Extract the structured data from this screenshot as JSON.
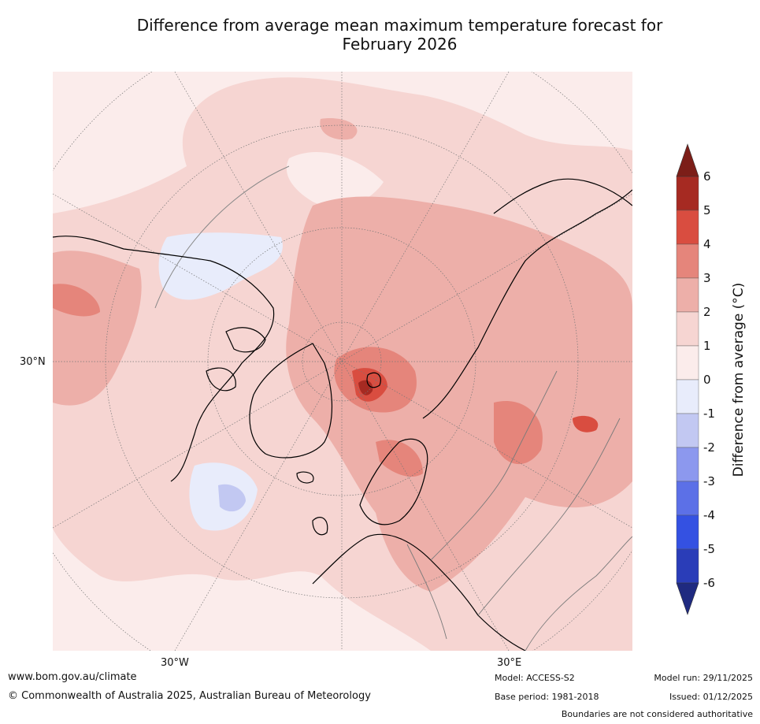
{
  "title_line1": "Difference from average mean maximum temperature forecast for",
  "title_line2": "February 2026",
  "map": {
    "lat_label": "30°N",
    "lon_labels": [
      "30°W",
      "30°E"
    ]
  },
  "colorbar": {
    "title": "Difference from average (°C)",
    "ticks": [
      "6",
      "5",
      "4",
      "3",
      "2",
      "1",
      "0",
      "-1",
      "-2",
      "-3",
      "-4",
      "-5",
      "-6"
    ],
    "colors": [
      "#a62a22",
      "#d94d40",
      "#e5857b",
      "#edafa9",
      "#f6d5d2",
      "#fbeceb",
      "#e8ecfb",
      "#c2c8f2",
      "#8c98ee",
      "#5c70e7",
      "#3451e2",
      "#2a3db8"
    ],
    "over_color": "#7c1e18",
    "under_color": "#1f2a80"
  },
  "footer": {
    "website": "www.bom.gov.au/climate",
    "copyright": "© Commonwealth of Australia 2025, Australian Bureau of Meteorology",
    "model": "Model: ACCESS-S2",
    "base_period": "Base period: 1981-2018",
    "model_run": "Model run: 29/11/2025",
    "issued": "Issued: 01/12/2025",
    "disclaimer": "Boundaries are not considered authoritative"
  }
}
